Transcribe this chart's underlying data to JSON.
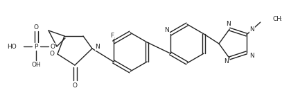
{
  "background_color": "#ffffff",
  "line_color": "#222222",
  "line_width": 1.0,
  "font_size": 6.5,
  "figsize": [
    4.07,
    1.37
  ],
  "dpi": 100,
  "xlim": [
    0,
    407
  ],
  "ylim": [
    0,
    137
  ]
}
